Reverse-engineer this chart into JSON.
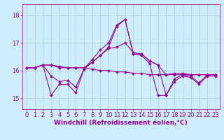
{
  "x": [
    0,
    1,
    2,
    3,
    4,
    5,
    6,
    7,
    8,
    9,
    10,
    11,
    12,
    13,
    14,
    15,
    16,
    17,
    18,
    19,
    20,
    21,
    22,
    23
  ],
  "line1": [
    16.1,
    16.1,
    16.2,
    16.2,
    16.1,
    16.1,
    16.1,
    16.1,
    16.05,
    16.0,
    16.0,
    15.95,
    15.95,
    15.9,
    15.9,
    15.85,
    15.85,
    15.85,
    15.85,
    15.85,
    15.85,
    15.85,
    15.85,
    15.85
  ],
  "line2": [
    16.1,
    16.1,
    16.2,
    15.8,
    15.6,
    15.65,
    15.4,
    16.05,
    16.3,
    16.55,
    16.85,
    17.6,
    17.85,
    16.6,
    16.6,
    16.35,
    16.2,
    15.1,
    15.7,
    15.85,
    15.8,
    15.55,
    15.85,
    15.85
  ],
  "line3": [
    16.1,
    16.1,
    16.2,
    15.1,
    15.5,
    15.5,
    15.2,
    16.05,
    16.4,
    16.75,
    17.0,
    17.65,
    17.85,
    16.6,
    16.55,
    16.25,
    15.1,
    15.1,
    15.6,
    15.8,
    15.75,
    15.5,
    15.8,
    15.8
  ],
  "line4": [
    16.1,
    16.1,
    16.2,
    16.2,
    16.15,
    16.1,
    16.1,
    16.1,
    16.3,
    16.55,
    16.8,
    16.85,
    17.0,
    16.65,
    16.6,
    16.35,
    16.2,
    15.85,
    15.9,
    15.9,
    15.85,
    15.85,
    15.85,
    15.85
  ],
  "color": "#990099",
  "bg_color": "#cceeff",
  "grid_color": "#aacccc",
  "xlabel": "Windchill (Refroidissement éolien,°C)",
  "yticks": [
    15,
    16,
    17,
    18
  ],
  "xtick_labels": [
    "0",
    "1",
    "2",
    "3",
    "4",
    "5",
    "6",
    "7",
    "8",
    "9",
    "10",
    "11",
    "12",
    "13",
    "14",
    "15",
    "16",
    "17",
    "18",
    "19",
    "20",
    "21",
    "22",
    "23"
  ],
  "ylim": [
    14.6,
    18.4
  ],
  "xlim": [
    -0.5,
    23.5
  ],
  "markersize": 2.0,
  "linewidth": 0.8,
  "xlabel_fontsize": 6.5,
  "tick_fontsize": 6.0
}
